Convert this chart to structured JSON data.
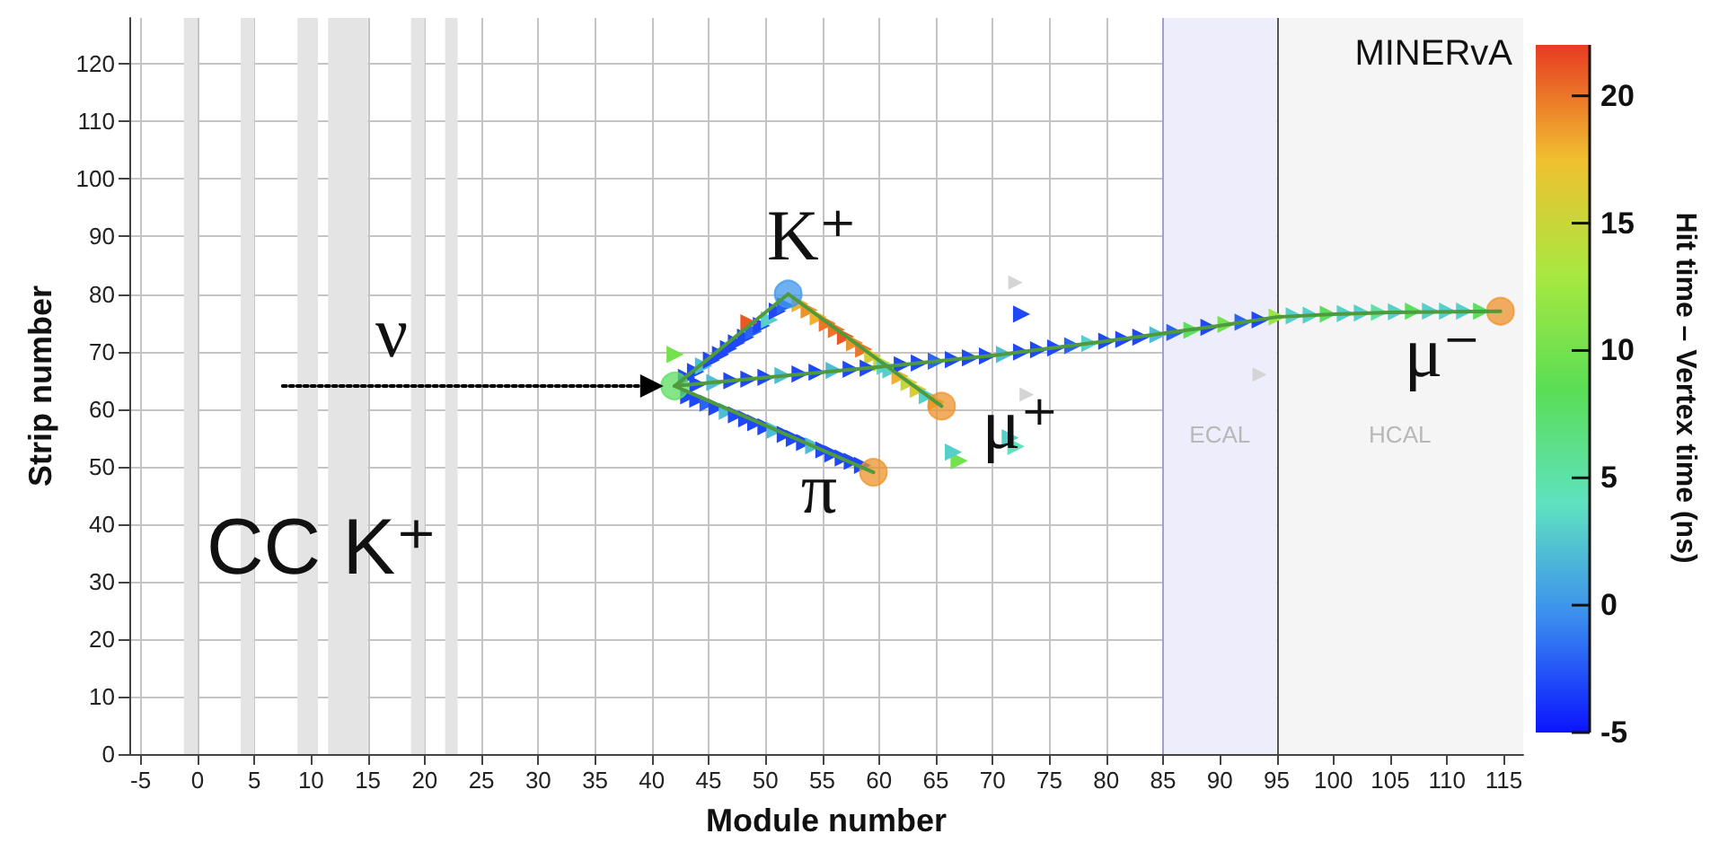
{
  "chart_data": {
    "type": "scatter",
    "xlabel": "Module number",
    "ylabel": "Strip number",
    "clabel": "Hit time – Vertex time (ns)",
    "xlim": [
      -6,
      116.7
    ],
    "ylim": [
      0,
      128
    ],
    "xticks": [
      -5,
      0,
      5,
      10,
      15,
      20,
      25,
      30,
      35,
      40,
      45,
      50,
      55,
      60,
      65,
      70,
      75,
      80,
      85,
      90,
      95,
      100,
      105,
      110,
      115
    ],
    "yticks": [
      0,
      10,
      20,
      30,
      40,
      50,
      60,
      70,
      80,
      90,
      100,
      110,
      120
    ],
    "clim": [
      -5,
      22
    ],
    "cticks": [
      -5,
      0,
      5,
      10,
      15,
      20
    ],
    "grid": true,
    "bands": [
      {
        "axis": "x",
        "from": -1.2,
        "to": 0,
        "color": "#e4e4e4"
      },
      {
        "axis": "x",
        "from": 3.8,
        "to": 5,
        "color": "#e4e4e4"
      },
      {
        "axis": "x",
        "from": 8.8,
        "to": 10.6,
        "color": "#e4e4e4"
      },
      {
        "axis": "x",
        "from": 11.5,
        "to": 15,
        "color": "#e4e4e4"
      },
      {
        "axis": "x",
        "from": 18.8,
        "to": 20,
        "color": "#e4e4e4"
      },
      {
        "axis": "x",
        "from": 21.8,
        "to": 22.9,
        "color": "#e4e4e4"
      },
      {
        "axis": "x",
        "from": 85,
        "to": 95,
        "color": "#ededfb",
        "label": "ECAL"
      },
      {
        "axis": "x",
        "from": 95,
        "to": 116.7,
        "color": "#f5f5f5",
        "label": "HCAL"
      }
    ],
    "ref_lines": [
      {
        "axis": "x",
        "value": 85,
        "color": "#a0a0d0"
      },
      {
        "axis": "x",
        "value": 95,
        "color": "#555555"
      }
    ],
    "annotations": [
      "CC K⁺",
      "MINERvA",
      "ν",
      "K⁺",
      "μ⁺",
      "π",
      "μ⁻"
    ],
    "series": [
      {
        "marker": "triangle",
        "x": [
          43,
          43.8,
          44.5,
          45.2,
          46,
          46.7,
          47.4,
          48.2,
          48.9,
          49.6,
          50.3,
          51,
          51.7,
          53,
          53.8,
          54.6,
          55.4,
          56.2,
          57,
          57.8,
          58.6,
          59.4,
          60.2,
          61,
          61.8,
          62.6,
          63.4,
          64.2,
          65,
          43.2,
          44,
          44.9,
          45.7,
          46.6,
          47.4,
          48.3,
          49.1,
          50,
          50.8,
          51.7,
          52.5,
          53.4,
          54.2,
          55.1,
          55.9,
          56.8,
          57.6,
          58.5,
          44,
          45.5,
          47,
          48.5,
          50,
          51.5,
          53,
          54.5,
          56,
          57.5,
          59,
          60.5,
          62,
          63.5,
          65,
          66.5,
          68,
          69.5,
          71,
          72.5,
          74,
          75.5,
          77,
          78.5,
          80,
          81.5,
          83,
          84.5,
          86,
          87.5,
          89,
          90.5,
          92,
          93.5,
          95,
          96.5,
          98,
          99.5,
          101,
          102.5,
          104,
          105.5,
          107,
          108.5,
          110,
          111.5,
          113,
          48.5,
          42,
          72.5,
          67,
          66.5,
          71.5,
          72
        ],
        "values": [
          65.5,
          66.5,
          67.5,
          68.5,
          69.5,
          70.5,
          71.5,
          72.5,
          73.5,
          74.5,
          75.5,
          77,
          78,
          78.3,
          77.2,
          76,
          74.9,
          73.8,
          72.6,
          71.5,
          70.4,
          69.2,
          68,
          66.8,
          65.7,
          64.6,
          63.4,
          62.3,
          61.2,
          62.3,
          61.7,
          61,
          60.3,
          59.6,
          59,
          58.3,
          57.6,
          56.9,
          56.3,
          55.6,
          54.9,
          54.2,
          53.6,
          52.9,
          52.2,
          51.5,
          50.9,
          50.2,
          64.3,
          64.6,
          64.9,
          65.2,
          65.5,
          65.8,
          66.1,
          66.4,
          66.7,
          66.9,
          67.1,
          67.4,
          67.7,
          68,
          68.3,
          68.6,
          68.9,
          69.2,
          69.5,
          69.9,
          70.3,
          70.6,
          71,
          71.4,
          71.8,
          72.1,
          72.5,
          72.9,
          73.3,
          73.7,
          74.2,
          74.7,
          75.1,
          75.5,
          76,
          76.2,
          76.3,
          76.5,
          76.6,
          76.7,
          76.8,
          76.9,
          77,
          77,
          77,
          77,
          77,
          75,
          69.5,
          76.5,
          51,
          52.5,
          55,
          53.5
        ],
        "cvalues": [
          -3,
          -3,
          2,
          -3,
          -3,
          -3,
          -3,
          -3,
          -2,
          -3,
          3,
          -3,
          -2,
          18,
          19,
          18,
          20,
          20,
          21,
          19,
          20,
          16,
          15,
          3,
          18,
          15,
          16,
          3,
          18,
          -3,
          -3,
          -2,
          -3,
          2,
          -3,
          -3,
          -3,
          -3,
          2,
          -3,
          -3,
          -3,
          2,
          -3,
          -3,
          -3,
          -3,
          -3,
          -3,
          2,
          -3,
          -3,
          -3,
          2,
          -3,
          -3,
          2,
          -3,
          -3,
          3,
          -3,
          -3,
          -2,
          -3,
          -3,
          -3,
          2,
          -3,
          -3,
          -3,
          -2,
          3,
          -3,
          -3,
          -3,
          2,
          -2,
          8,
          -3,
          10,
          -2,
          -3,
          12,
          3,
          3,
          8,
          3,
          3,
          5,
          3,
          8,
          3,
          3,
          3,
          8,
          21,
          10,
          -3,
          10,
          3,
          3,
          4
        ],
        "colors": [
          "#1f49f8",
          "#1f49f8",
          "#4fbcd5",
          "#1f49f8",
          "#1f49f8",
          "#1f49f8",
          "#1f49f8",
          "#1f49f8",
          "#2a64f5",
          "#1f49f8",
          "#57cfcb",
          "#1f49f8",
          "#2a64f5",
          "#efb12e",
          "#ed932b",
          "#efb12e",
          "#ec7528",
          "#ec7528",
          "#ea5825",
          "#ed932b",
          "#ec7528",
          "#d8cd35",
          "#c8d639",
          "#57cfcb",
          "#efb12e",
          "#c8d639",
          "#d8cd35",
          "#57cfcb",
          "#efb12e",
          "#1f49f8",
          "#1f49f8",
          "#2a64f5",
          "#1f49f8",
          "#4fbcd5",
          "#1f49f8",
          "#1f49f8",
          "#1f49f8",
          "#1f49f8",
          "#4fbcd5",
          "#1f49f8",
          "#1f49f8",
          "#1f49f8",
          "#4fbcd5",
          "#1f49f8",
          "#1f49f8",
          "#1f49f8",
          "#1f49f8",
          "#1f49f8",
          "#1f49f8",
          "#4fbcd5",
          "#1f49f8",
          "#1f49f8",
          "#1f49f8",
          "#4fbcd5",
          "#1f49f8",
          "#1f49f8",
          "#4fbcd5",
          "#1f49f8",
          "#1f49f8",
          "#57cfcb",
          "#1f49f8",
          "#1f49f8",
          "#2a64f5",
          "#1f49f8",
          "#1f49f8",
          "#1f49f8",
          "#4fbcd5",
          "#1f49f8",
          "#1f49f8",
          "#1f49f8",
          "#2a64f5",
          "#57cfcb",
          "#1f49f8",
          "#1f49f8",
          "#1f49f8",
          "#4fbcd5",
          "#2a64f5",
          "#5bde61",
          "#1f49f8",
          "#74e14e",
          "#2a64f5",
          "#1f49f8",
          "#97e645",
          "#57cfcb",
          "#57cfcb",
          "#5bde61",
          "#57cfcb",
          "#57cfcb",
          "#5ee1a8",
          "#57cfcb",
          "#5bde61",
          "#57cfcb",
          "#57cfcb",
          "#57cfcb",
          "#5bde61",
          "#ea5825",
          "#74e14e",
          "#1f49f8",
          "#74e14e",
          "#57cfcb",
          "#57cfcb",
          "#5fe2c0"
        ]
      },
      {
        "marker": "triangle",
        "color": "#d4d4d4",
        "x": [
          72,
          73,
          93.5
        ],
        "values": [
          82,
          62.5,
          66
        ]
      },
      {
        "marker": "circle",
        "x": [
          42,
          52,
          65.5,
          59.5,
          114.7
        ],
        "values": [
          64,
          80,
          60.5,
          49,
          77
        ],
        "cvalues": [
          8,
          0,
          19,
          19,
          19
        ],
        "colors": [
          "#5bde61",
          "#3e96eb",
          "#ed932b",
          "#ed932b",
          "#ed932b"
        ]
      },
      {
        "type": "line",
        "marker": "none",
        "line_style": "solid",
        "color": "#4e9a3c",
        "x": [
          42,
          52
        ],
        "values": [
          64,
          80
        ]
      },
      {
        "type": "line",
        "marker": "none",
        "line_style": "solid",
        "color": "#4e9a3c",
        "x": [
          52,
          65.5
        ],
        "values": [
          80,
          60.5
        ]
      },
      {
        "type": "line",
        "marker": "none",
        "line_style": "solid",
        "color": "#4e9a3c",
        "x": [
          42,
          59.5
        ],
        "values": [
          64,
          49
        ]
      },
      {
        "type": "line",
        "marker": "none",
        "line_style": "solid",
        "color": "#4e9a3c",
        "x": [
          42,
          50,
          60,
          70,
          80,
          90,
          95,
          100,
          105,
          114.7
        ],
        "values": [
          64,
          65.5,
          67.3,
          69.3,
          71.8,
          74.5,
          76,
          76.5,
          76.8,
          77
        ]
      },
      {
        "type": "line",
        "marker": "triangle",
        "line_style": "dotted",
        "color": "#000000",
        "x": [
          7.5,
          40
        ],
        "values": [
          64,
          64
        ]
      }
    ]
  }
}
